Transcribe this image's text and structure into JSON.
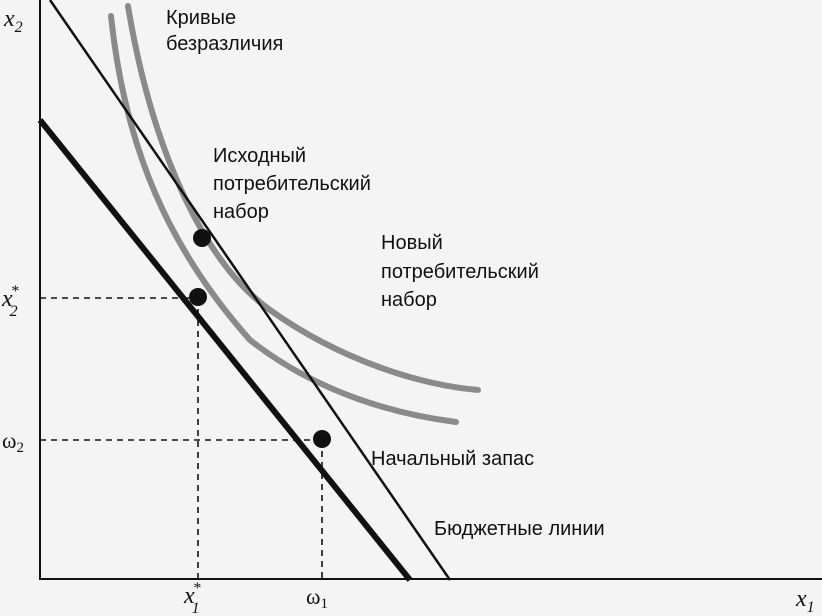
{
  "axes": {
    "x_label": "x",
    "x_sub": "1",
    "y_label": "x",
    "y_sub": "2"
  },
  "ticks": {
    "x_star": "x",
    "x_star_sup": "*",
    "x_star_sub": "1",
    "omega1": "ω",
    "omega1_sub": "1",
    "y_star": "x",
    "y_star_sup": "*",
    "y_star_sub": "2",
    "omega2": "ω",
    "omega2_sub": "2"
  },
  "annotations": {
    "curves_line1": "Кривые",
    "curves_line2": "безразличия",
    "orig_line1": "Исходный",
    "orig_line2": "потребительский",
    "orig_line3": "набор",
    "new_line1": "Новый",
    "new_line2": "потребительский",
    "new_line3": "набор",
    "endowment": "Начальный запас",
    "budget": "Бюджетные линии"
  },
  "colors": {
    "background": "#f4f4f4",
    "ink": "#111111",
    "curve_gray": "#8a8a8a"
  }
}
